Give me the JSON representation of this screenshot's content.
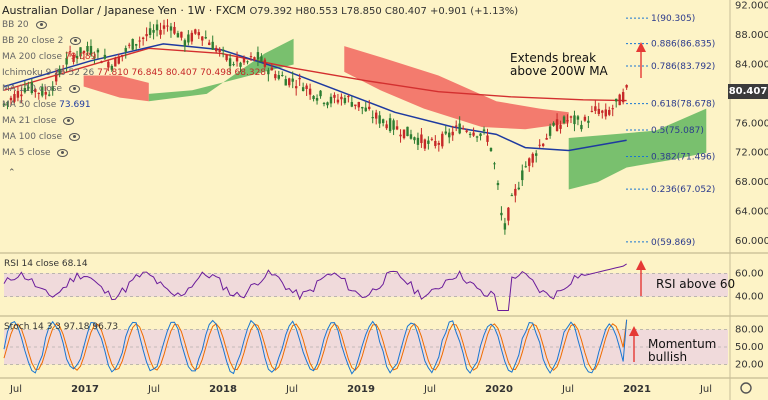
{
  "header": {
    "title": "Australian Dollar / Japanese Yen · 1W · FXCM",
    "ohlc": "O79.392 H80.553 L78.850 C80.407 +0.901 (+1.13%)"
  },
  "indicators": [
    {
      "label": "BB 20",
      "value": ""
    },
    {
      "label": "BB 20 close 2",
      "value": ""
    },
    {
      "label": "MA 200 close",
      "value": "79.089"
    },
    {
      "label": "Ichimoku 9 26 52 26",
      "value": "77.810 76.845 80.407 70.498 68.328"
    },
    {
      "label": "MA 110 close",
      "value": ""
    },
    {
      "label": "MA 50 close",
      "value": "73.691"
    },
    {
      "label": "MA 21 close",
      "value": ""
    },
    {
      "label": "MA 100 close",
      "value": ""
    },
    {
      "label": "MA 5 close",
      "value": ""
    }
  ],
  "annotations": {
    "break": "Extends break\nabove 200W MA",
    "rsi": "RSI above 60",
    "stoch": "Momentum\nbullish"
  },
  "price_tag": "80.407",
  "rsi_legend": "RSI 14 close 68.14",
  "stoch_legend": "Stoch 14 3 3 97.18 96.73",
  "colors": {
    "bg": "#fdf3c6",
    "up": "#2e7d32",
    "down": "#c62828",
    "ma200": "#d32f2f",
    "ma50": "#1e3aa0",
    "cloud_bull": "#4caf50",
    "cloud_bear": "#ef5350",
    "rsi": "#6a1b9a",
    "stochK": "#1976d2",
    "stochD": "#ef6c00",
    "fib": "#1976d2",
    "arrow": "#e53935"
  },
  "chart_data": {
    "type": "candlestick",
    "x_axis_labels": [
      "Jul",
      "2017",
      "Jul",
      "2018",
      "Jul",
      "2019",
      "Jul",
      "2020",
      "Jul",
      "2021",
      "Jul"
    ],
    "price_axis": {
      "ticks": [
        92,
        88,
        84,
        80,
        76,
        72,
        68,
        64,
        60
      ],
      "range": [
        58.5,
        92.5
      ]
    },
    "fib_levels": [
      {
        "label": "1(90.305)",
        "value": 90.305
      },
      {
        "label": "0.886(86.835)",
        "value": 86.835
      },
      {
        "label": "0.786(83.792)",
        "value": 83.792
      },
      {
        "label": "0.618(78.678)",
        "value": 78.678
      },
      {
        "label": "0.5(75.087)",
        "value": 75.087
      },
      {
        "label": "0.382(71.496)",
        "value": 71.496
      },
      {
        "label": "0.236(67.052)",
        "value": 67.052
      },
      {
        "label": "0(59.869)",
        "value": 59.869
      }
    ],
    "price_path": [
      [
        0,
        78.5
      ],
      [
        0.03,
        81
      ],
      [
        0.06,
        80
      ],
      [
        0.09,
        85
      ],
      [
        0.12,
        86
      ],
      [
        0.15,
        84
      ],
      [
        0.18,
        87
      ],
      [
        0.21,
        88.5
      ],
      [
        0.23,
        89.5
      ],
      [
        0.25,
        87
      ],
      [
        0.27,
        88.5
      ],
      [
        0.29,
        86.5
      ],
      [
        0.31,
        84.5
      ],
      [
        0.33,
        84
      ],
      [
        0.35,
        85
      ],
      [
        0.37,
        83
      ],
      [
        0.39,
        82
      ],
      [
        0.41,
        81.5
      ],
      [
        0.43,
        80
      ],
      [
        0.45,
        79
      ],
      [
        0.47,
        79.5
      ],
      [
        0.49,
        78.5
      ],
      [
        0.51,
        77
      ],
      [
        0.53,
        76
      ],
      [
        0.55,
        75
      ],
      [
        0.57,
        74
      ],
      [
        0.59,
        73
      ],
      [
        0.61,
        74
      ],
      [
        0.63,
        75.5
      ],
      [
        0.65,
        75
      ],
      [
        0.67,
        74
      ],
      [
        0.68,
        69
      ],
      [
        0.69,
        61
      ],
      [
        0.7,
        65
      ],
      [
        0.72,
        70
      ],
      [
        0.74,
        73
      ],
      [
        0.76,
        75.5
      ],
      [
        0.78,
        76.5
      ],
      [
        0.8,
        76
      ],
      [
        0.82,
        78
      ],
      [
        0.83,
        77
      ],
      [
        0.85,
        79
      ],
      [
        0.86,
        80.4
      ]
    ],
    "ma200": [
      [
        0,
        80.5
      ],
      [
        0.2,
        86.2
      ],
      [
        0.3,
        85.5
      ],
      [
        0.4,
        83.5
      ],
      [
        0.5,
        81.8
      ],
      [
        0.6,
        80.3
      ],
      [
        0.7,
        79.6
      ],
      [
        0.8,
        79.2
      ],
      [
        0.86,
        79.1
      ]
    ],
    "ma50": [
      [
        0,
        81
      ],
      [
        0.12,
        84.5
      ],
      [
        0.22,
        86.8
      ],
      [
        0.3,
        86
      ],
      [
        0.38,
        83.5
      ],
      [
        0.46,
        80.5
      ],
      [
        0.54,
        77.5
      ],
      [
        0.62,
        75.5
      ],
      [
        0.68,
        74.5
      ],
      [
        0.72,
        72.7
      ],
      [
        0.78,
        72.3
      ],
      [
        0.86,
        73.7
      ]
    ],
    "rsi": {
      "range": [
        25,
        75
      ],
      "ticks": [
        60,
        40
      ],
      "last": 68.14
    },
    "stoch": {
      "range": [
        0,
        100
      ],
      "ticks": [
        80,
        50,
        20
      ],
      "k_last": 97.18,
      "d_last": 96.73
    }
  }
}
